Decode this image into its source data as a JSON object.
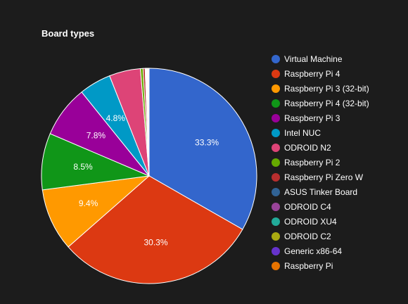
{
  "chart_data": {
    "type": "pie",
    "title": "Board types",
    "legend_position": "right",
    "slices": [
      {
        "label": "Virtual Machine",
        "value": 33.3,
        "color": "#3366cc",
        "display": "33.3%"
      },
      {
        "label": "Raspberry Pi 4",
        "value": 30.3,
        "color": "#dc3912",
        "display": "30.3%"
      },
      {
        "label": "Raspberry Pi 3 (32-bit)",
        "value": 9.4,
        "color": "#ff9900",
        "display": "9.4%"
      },
      {
        "label": "Raspberry Pi 4 (32-bit)",
        "value": 8.5,
        "color": "#109618",
        "display": "8.5%"
      },
      {
        "label": "Raspberry Pi 3",
        "value": 7.8,
        "color": "#990099",
        "display": "7.8%"
      },
      {
        "label": "Intel NUC",
        "value": 4.8,
        "color": "#0099c6",
        "display": "4.8%"
      },
      {
        "label": "ODROID N2",
        "value": 4.7,
        "color": "#dd4477",
        "display": ""
      },
      {
        "label": "Raspberry Pi 2",
        "value": 0.4,
        "color": "#66aa00",
        "display": ""
      },
      {
        "label": "Raspberry Pi Zero W",
        "value": 0.3,
        "color": "#b82e2e",
        "display": ""
      },
      {
        "label": "ASUS Tinker Board",
        "value": 0.1,
        "color": "#316395",
        "display": ""
      },
      {
        "label": "ODROID C4",
        "value": 0.1,
        "color": "#994499",
        "display": ""
      },
      {
        "label": "ODROID XU4",
        "value": 0.1,
        "color": "#22aa99",
        "display": ""
      },
      {
        "label": "ODROID C2",
        "value": 0.1,
        "color": "#aaaa11",
        "display": ""
      },
      {
        "label": "Generic x86-64",
        "value": 0.1,
        "color": "#6633cc",
        "display": ""
      },
      {
        "label": "Raspberry Pi",
        "value": 0.1,
        "color": "#e67300",
        "display": ""
      }
    ]
  }
}
